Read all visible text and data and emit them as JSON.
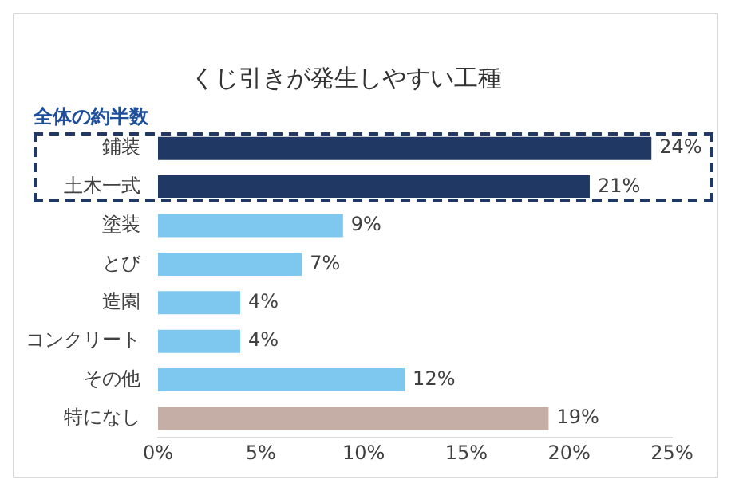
{
  "chart_data": {
    "type": "bar",
    "orientation": "horizontal",
    "title": "くじ引きが発生しやすい工種",
    "categories": [
      "鋪装",
      "土木一式",
      "塗装",
      "とび",
      "造園",
      "コンクリート",
      "その他",
      "特になし"
    ],
    "values": [
      24,
      21,
      9,
      7,
      4,
      4,
      12,
      19
    ],
    "colors": [
      "#203864",
      "#203864",
      "#7ec8f0",
      "#7ec8f0",
      "#7ec8f0",
      "#7ec8f0",
      "#7ec8f0",
      "#c4aea6"
    ],
    "value_labels": [
      "24%",
      "21%",
      "9%",
      "7%",
      "4%",
      "4%",
      "12%",
      "19%"
    ],
    "xlim": [
      0,
      25
    ],
    "xticks": [
      {
        "value": 0,
        "label": "0%"
      },
      {
        "value": 5,
        "label": "5%"
      },
      {
        "value": 10,
        "label": "10%"
      },
      {
        "value": 15,
        "label": "15%"
      },
      {
        "value": 20,
        "label": "20%"
      },
      {
        "value": 25,
        "label": "25%"
      }
    ],
    "annotations": [
      "全体の約半数"
    ],
    "grid": false
  }
}
